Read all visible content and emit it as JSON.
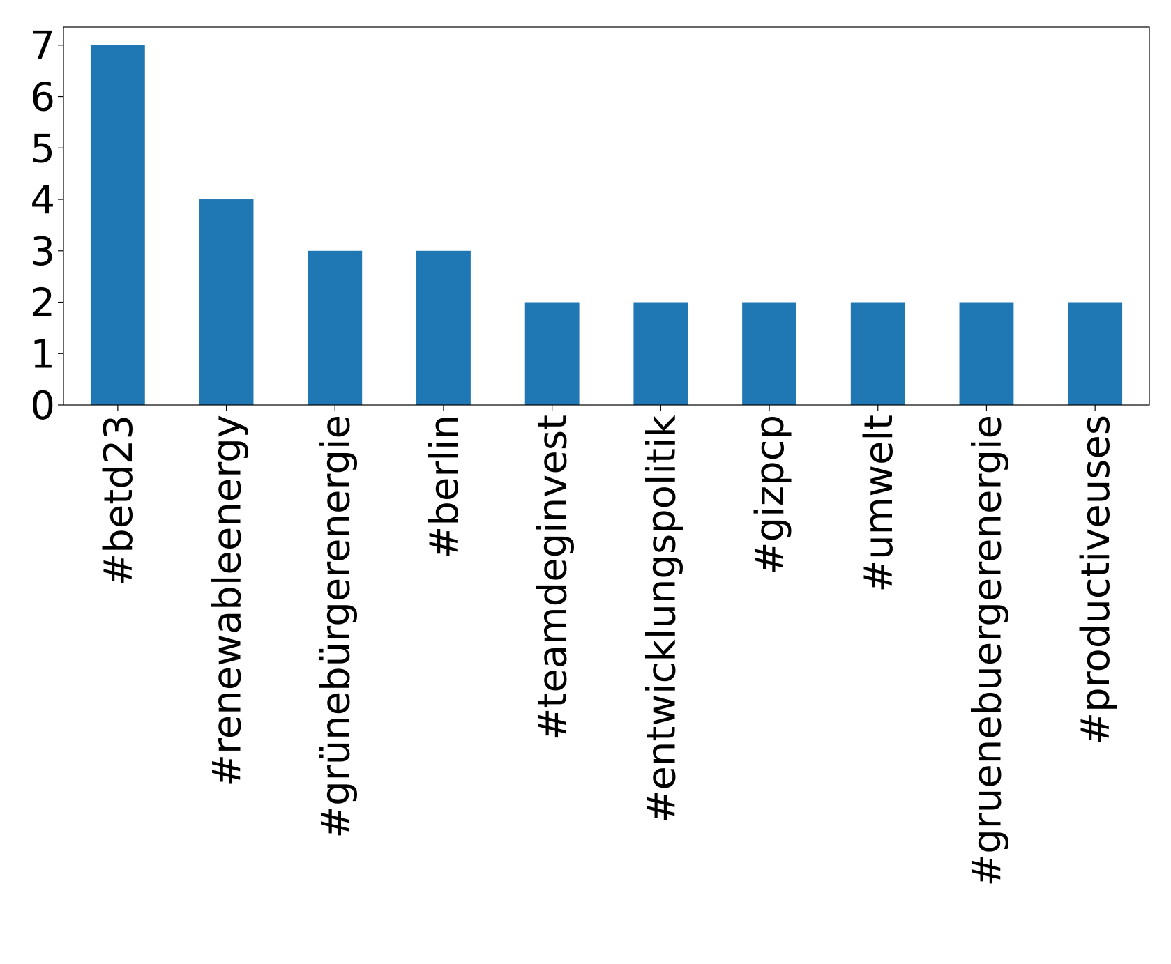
{
  "chart_data": {
    "type": "bar",
    "categories": [
      "#betd23",
      "#renewableenergy",
      "#grünebürgerenergie",
      "#berlin",
      "#teamdeginvest",
      "#entwicklungspolitik",
      "#gizpcp",
      "#umwelt",
      "#gruenebuergerenergie",
      "#productiveuses"
    ],
    "values": [
      7,
      4,
      3,
      3,
      2,
      2,
      2,
      2,
      2,
      2
    ],
    "color": "#1f77b4",
    "ylim": [
      0,
      7.35
    ],
    "yticks": [
      0,
      1,
      2,
      3,
      4,
      5,
      6,
      7
    ]
  }
}
